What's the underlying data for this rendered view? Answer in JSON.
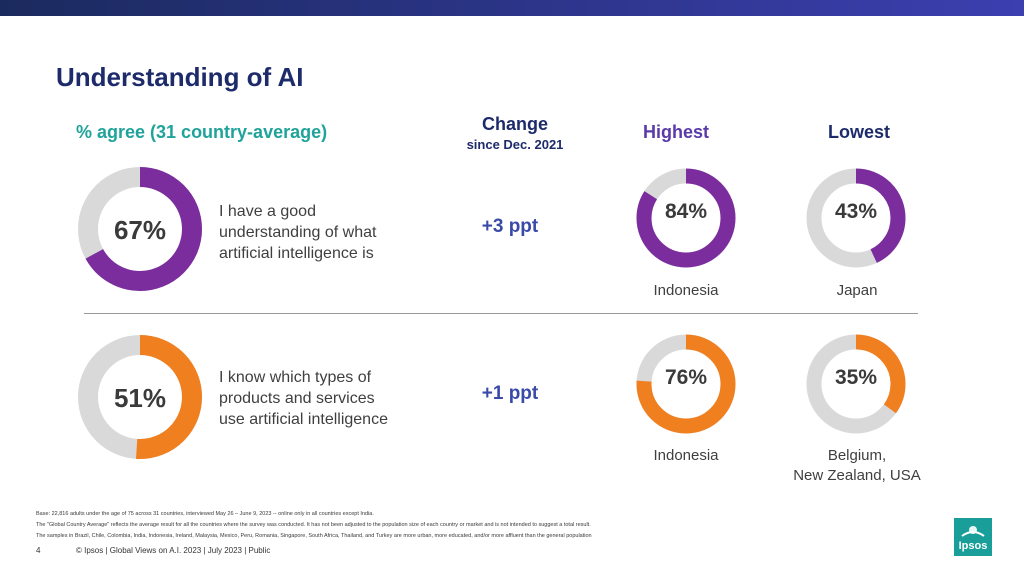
{
  "slide": {
    "title": "Understanding of AI",
    "page_number": "4",
    "footer": "© Ipsos | Global Views on A.I. 2023 | July 2023 | Public",
    "logo_text": "Ipsos",
    "notes": [
      "Base: 22,816 adults under the age of 75 across 31 countries, interviewed May 26 – June 9, 2023 -- online only in all countries except India.",
      "The \"Global Country Average\" reflects the average result for all the countries where the survey was conducted. It has not been adjusted to the population size of each country or market and is not intended to suggest a total result.",
      "The samples in Brazil, Chile, Colombia, India, Indonesia, Ireland, Malaysia, Mexico, Peru, Romania, Singapore, South Africa, Thailand, and Turkey are more urban, more educated, and/or more affluent than the general population"
    ]
  },
  "headers": {
    "agree": "% agree (31 country-average)",
    "change_line1": "Change",
    "change_line2": "since Dec. 2021",
    "highest": "Highest",
    "lowest": "Lowest"
  },
  "colors": {
    "topbar_start": "#1b2a5e",
    "topbar_end": "#3b3fb0",
    "purple": "#7b2d9e",
    "orange": "#f07f1f",
    "track": "#d9d9d9",
    "logo": "#1a9e9a"
  },
  "chart_data": [
    {
      "type": "pie",
      "subtype": "donut",
      "series": "agree_average",
      "title": "I have a good understanding of what artificial intelligence is",
      "value": 67,
      "label": "67%",
      "color": "#7b2d9e"
    },
    {
      "type": "pie",
      "subtype": "donut",
      "series": "highest",
      "title": "Indonesia",
      "value": 84,
      "label": "84%",
      "color": "#7b2d9e"
    },
    {
      "type": "pie",
      "subtype": "donut",
      "series": "lowest",
      "title": "Japan",
      "value": 43,
      "label": "43%",
      "color": "#7b2d9e"
    },
    {
      "type": "pie",
      "subtype": "donut",
      "series": "agree_average",
      "title": "I know which types of products and services use artificial intelligence",
      "value": 51,
      "label": "51%",
      "color": "#f07f1f"
    },
    {
      "type": "pie",
      "subtype": "donut",
      "series": "highest",
      "title": "Indonesia",
      "value": 76,
      "label": "76%",
      "color": "#f07f1f"
    },
    {
      "type": "pie",
      "subtype": "donut",
      "series": "lowest",
      "title": "Belgium, New Zealand, USA",
      "value": 35,
      "label": "35%",
      "color": "#f07f1f"
    }
  ],
  "rows": [
    {
      "statement": [
        "I have a good",
        "understanding of what",
        "artificial intelligence is"
      ],
      "change": "+3 ppt",
      "highest_country": "Indonesia",
      "lowest_country": [
        "Japan"
      ]
    },
    {
      "statement": [
        "I know which types of",
        "products and services",
        "use artificial intelligence"
      ],
      "change": "+1 ppt",
      "highest_country": "Indonesia",
      "lowest_country": [
        "Belgium,",
        "New Zealand, USA"
      ]
    }
  ]
}
